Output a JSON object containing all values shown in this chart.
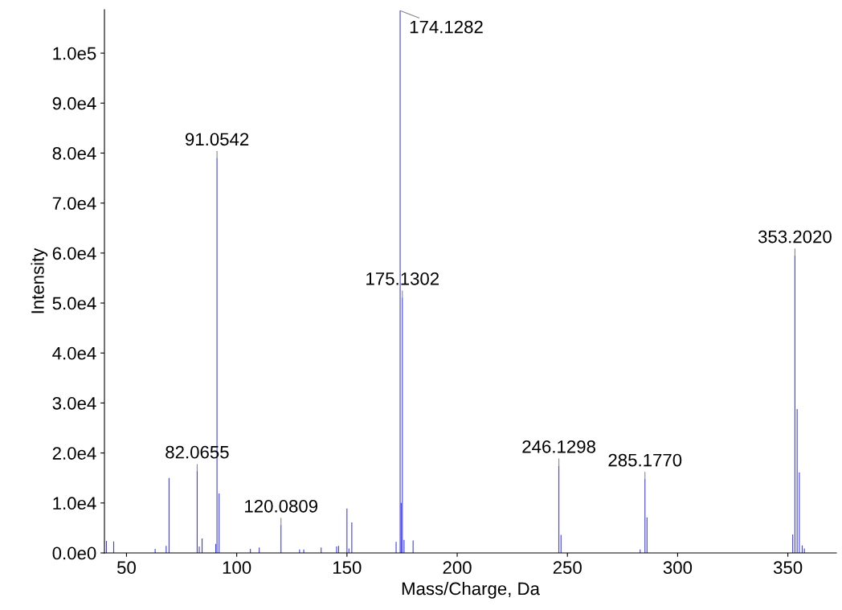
{
  "chart_data": {
    "type": "bar",
    "xlabel": "Mass/Charge, Da",
    "ylabel": "Intensity",
    "color": "#3b3bff",
    "x": [
      40.9,
      44.2,
      63.0,
      68.0,
      69.3,
      82.0655,
      83.0,
      84.3,
      90.5,
      91.0542,
      92.0,
      106.2,
      110.2,
      120.0809,
      128.5,
      130.4,
      138.3,
      145.3,
      146.2,
      150.0,
      150.9,
      152.2,
      172.3,
      174.1282,
      174.6,
      175.1302,
      175.9,
      180.0,
      246.1298,
      247.1,
      283.0,
      285.177,
      286.1,
      352.2,
      353.202,
      354.2,
      355.2,
      356.5,
      357.5
    ],
    "values": [
      2400,
      2300,
      800,
      1400,
      15000,
      16400,
      1300,
      2900,
      1800,
      79000,
      11900,
      800,
      1100,
      5600,
      700,
      700,
      1100,
      1300,
      1400,
      8900,
      900,
      6100,
      2200,
      108500,
      10000,
      51100,
      2600,
      2500,
      17500,
      3600,
      700,
      14800,
      7100,
      3700,
      59500,
      28800,
      16100,
      1500,
      900
    ],
    "xlim": [
      40,
      372
    ],
    "xticks": [
      50,
      100,
      150,
      200,
      250,
      300,
      350
    ],
    "ylim": [
      0,
      108700
    ],
    "yticks": [
      {
        "value": 0,
        "label": "0.0e0"
      },
      {
        "value": 10000,
        "label": "1.0e4"
      },
      {
        "value": 20000,
        "label": "2.0e4"
      },
      {
        "value": 30000,
        "label": "3.0e4"
      },
      {
        "value": 40000,
        "label": "4.0e4"
      },
      {
        "value": 50000,
        "label": "5.0e4"
      },
      {
        "value": 60000,
        "label": "6.0e4"
      },
      {
        "value": 70000,
        "label": "7.0e4"
      },
      {
        "value": 80000,
        "label": "8.0e4"
      },
      {
        "value": 90000,
        "label": "9.0e4"
      },
      {
        "value": 100000,
        "label": "1.0e5"
      }
    ],
    "annotations": [
      {
        "text": "82.0655",
        "x": 82.0655,
        "y": 16400
      },
      {
        "text": "91.0542",
        "x": 91.0542,
        "y": 79000
      },
      {
        "text": "120.0809",
        "x": 120.0809,
        "y": 5600
      },
      {
        "text": "174.1282",
        "x": 174.1282,
        "y": 108500
      },
      {
        "text": "175.1302",
        "x": 175.1302,
        "y": 51100
      },
      {
        "text": "246.1298",
        "x": 246.1298,
        "y": 17500
      },
      {
        "text": "285.1770",
        "x": 285.177,
        "y": 14800
      },
      {
        "text": "353.2020",
        "x": 353.202,
        "y": 59500
      }
    ]
  }
}
